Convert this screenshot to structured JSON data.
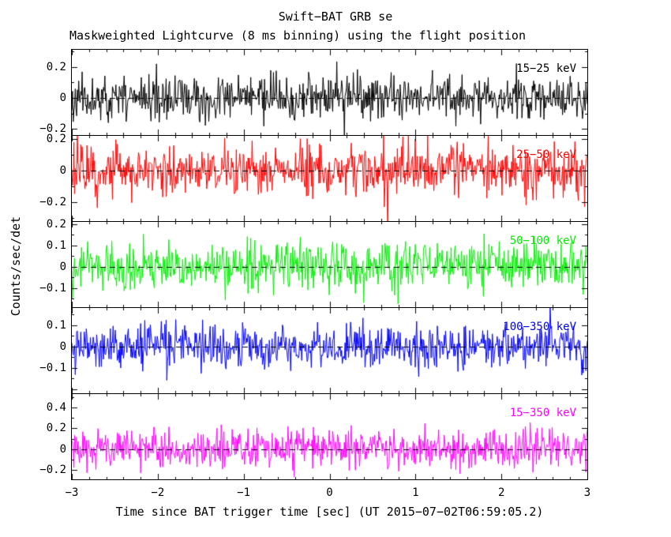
{
  "chart_data": {
    "type": "line",
    "title": "Swift−BAT GRB se",
    "subtitle": "Maskweighted Lightcurve (8 ms binning) using the flight position",
    "xlabel": "Time since BAT trigger time [sec] (UT 2015−07−02T06:59:05.2)",
    "ylabel": "Counts/sec/det",
    "x_range": [
      -3,
      3
    ],
    "x_ticks": [
      -3,
      -2,
      -1,
      0,
      1,
      2,
      3
    ],
    "x_minor_step": 0.2,
    "bin_seconds": 0.008,
    "n_bins": 750,
    "grid": false,
    "zero_line": "dashed",
    "panels": [
      {
        "label": "15−25 keV",
        "color": "#000000",
        "ylim": [
          -0.24,
          0.31
        ],
        "yticks": [
          -0.2,
          0,
          0.2
        ],
        "sigma": 0.07,
        "seed": 11
      },
      {
        "label": "25−50 keV",
        "color": "#ff0000",
        "ylim": [
          -0.32,
          0.22
        ],
        "yticks": [
          -0.2,
          0,
          0.2
        ],
        "sigma": 0.08,
        "seed": 22
      },
      {
        "label": "50−100 keV",
        "color": "#00ee00",
        "ylim": [
          -0.19,
          0.21
        ],
        "yticks": [
          -0.1,
          0,
          0.1,
          0.2
        ],
        "sigma": 0.055,
        "seed": 33
      },
      {
        "label": "100−350 keV",
        "color": "#0000ff",
        "ylim": [
          -0.22,
          0.18
        ],
        "yticks": [
          -0.1,
          0,
          0.1
        ],
        "sigma": 0.05,
        "seed": 44
      },
      {
        "label": "15−350 keV",
        "color": "#ff00ff",
        "ylim": [
          -0.29,
          0.53
        ],
        "yticks": [
          -0.2,
          0,
          0.2,
          0.4
        ],
        "sigma": 0.095,
        "seed": 55
      }
    ]
  }
}
